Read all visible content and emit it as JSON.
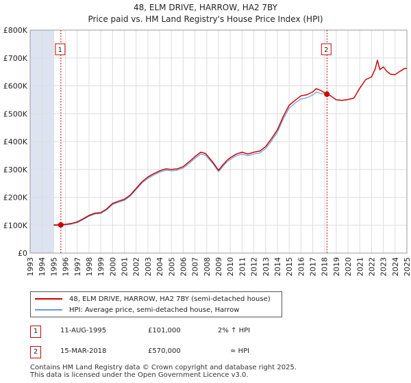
{
  "header": {
    "title": "48, ELM DRIVE, HARROW, HA2 7BY",
    "subtitle": "Price paid vs. HM Land Registry's House Price Index (HPI)"
  },
  "colors": {
    "price_line": "#cc0000",
    "hpi_line": "#6699dd",
    "grid": "#dddddd",
    "shade": "#dde3f0"
  },
  "chart_data": {
    "type": "line",
    "x_ticks": [
      "1993",
      "1994",
      "1995",
      "1996",
      "1997",
      "1998",
      "1999",
      "2000",
      "2001",
      "2002",
      "2003",
      "2004",
      "2005",
      "2006",
      "2007",
      "2008",
      "2009",
      "2010",
      "2011",
      "2012",
      "2013",
      "2014",
      "2015",
      "2016",
      "2017",
      "2018",
      "2019",
      "2020",
      "2021",
      "2022",
      "2023",
      "2024",
      "2025"
    ],
    "y_ticks": [
      "£0",
      "£100K",
      "£200K",
      "£300K",
      "£400K",
      "£500K",
      "£600K",
      "£700K",
      "£800K"
    ],
    "xlim": [
      1993,
      2025
    ],
    "ylim": [
      0,
      800000
    ],
    "shaded_before": 1995.0,
    "series": [
      {
        "name": "48, ELM DRIVE, HARROW, HA2 7BY (semi-detached house)",
        "x": [
          1995.0,
          1995.61,
          1996.0,
          1996.5,
          1997.0,
          1997.5,
          1998.0,
          1998.5,
          1999.0,
          1999.5,
          2000.0,
          2000.5,
          2001.0,
          2001.5,
          2002.0,
          2002.5,
          2003.0,
          2003.5,
          2004.0,
          2004.5,
          2005.0,
          2005.5,
          2006.0,
          2006.5,
          2007.0,
          2007.5,
          2007.9,
          2008.5,
          2009.0,
          2009.3,
          2009.7,
          2010.0,
          2010.5,
          2011.0,
          2011.5,
          2012.0,
          2012.5,
          2013.0,
          2013.5,
          2014.0,
          2014.5,
          2015.0,
          2015.5,
          2016.0,
          2016.5,
          2017.0,
          2017.3,
          2017.7,
          2018.21,
          2018.5,
          2019.0,
          2019.5,
          2020.0,
          2020.5,
          2021.0,
          2021.5,
          2022.0,
          2022.3,
          2022.5,
          2022.7,
          2023.0,
          2023.3,
          2023.6,
          2024.0,
          2024.4,
          2024.8,
          2025.0
        ],
        "values": [
          101000,
          101000,
          103000,
          106000,
          112000,
          123000,
          135000,
          143000,
          145000,
          158000,
          178000,
          186000,
          193000,
          208000,
          232000,
          256000,
          273000,
          285000,
          295000,
          302000,
          300000,
          302000,
          310000,
          327000,
          346000,
          362000,
          357000,
          327000,
          297000,
          313000,
          332000,
          342000,
          355000,
          362000,
          355000,
          362000,
          366000,
          382000,
          410000,
          442000,
          490000,
          530000,
          548000,
          564000,
          568000,
          578000,
          590000,
          583000,
          570000,
          565000,
          550000,
          548000,
          551000,
          556000,
          592000,
          622000,
          632000,
          660000,
          692000,
          658000,
          668000,
          652000,
          642000,
          640000,
          652000,
          662000,
          662000
        ]
      },
      {
        "name": "HPI: Average price, semi-detached house, Harrow",
        "x": [
          1995.0,
          1995.61,
          1996.0,
          1996.5,
          1997.0,
          1997.5,
          1998.0,
          1998.5,
          1999.0,
          1999.5,
          2000.0,
          2000.5,
          2001.0,
          2001.5,
          2002.0,
          2002.5,
          2003.0,
          2003.5,
          2004.0,
          2004.5,
          2005.0,
          2005.5,
          2006.0,
          2006.5,
          2007.0,
          2007.5,
          2007.9,
          2008.5,
          2009.0,
          2009.3,
          2009.7,
          2010.0,
          2010.5,
          2011.0,
          2011.5,
          2012.0,
          2012.5,
          2013.0,
          2013.5,
          2014.0,
          2014.5,
          2015.0,
          2015.5,
          2016.0,
          2016.5,
          2017.0,
          2017.3,
          2017.7,
          2018.21
        ],
        "values": [
          99000,
          99000,
          101000,
          104000,
          109000,
          120000,
          132000,
          140000,
          142000,
          155000,
          174000,
          182000,
          189000,
          204000,
          228000,
          251000,
          268000,
          280000,
          290000,
          297000,
          295000,
          297000,
          305000,
          321000,
          340000,
          355000,
          351000,
          322000,
          292000,
          307000,
          326000,
          336000,
          349000,
          355000,
          349000,
          355000,
          359000,
          375000,
          402000,
          433000,
          480000,
          520000,
          538000,
          553000,
          557000,
          567000,
          578000,
          572000,
          570000
        ]
      }
    ],
    "markers": [
      {
        "label": "1",
        "x": 1995.61,
        "value": 101000
      },
      {
        "label": "2",
        "x": 2018.21,
        "value": 570000
      }
    ]
  },
  "legend": {
    "price_label": "48, ELM DRIVE, HARROW, HA2 7BY (semi-detached house)",
    "hpi_label": "HPI: Average price, semi-detached house, Harrow"
  },
  "transactions": [
    {
      "num": "1",
      "date": "11-AUG-1995",
      "price": "£101,000",
      "delta": "2% ↑ HPI"
    },
    {
      "num": "2",
      "date": "15-MAR-2018",
      "price": "£570,000",
      "delta": "≈ HPI"
    }
  ],
  "footer": {
    "line1": "Contains HM Land Registry data © Crown copyright and database right 2025.",
    "line2": "This data is licensed under the Open Government Licence v3.0."
  }
}
